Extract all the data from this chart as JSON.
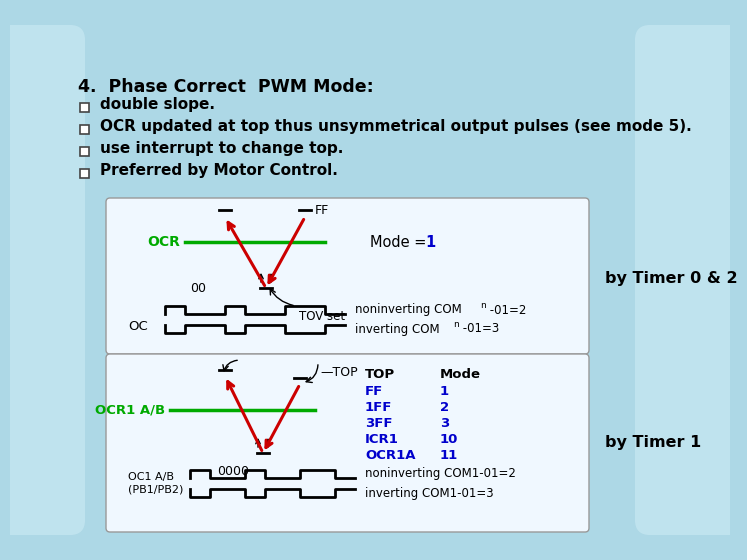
{
  "bg_color": "#add8e6",
  "box_bg": "#f0f8ff",
  "title_line": "4.  Phase Correct  PWM Mode:",
  "bullets": [
    "double slope.",
    "OCR updated at top thus unsymmetrical output pulses (see mode 5).",
    "use interrupt to change top.",
    "Preferred by Motor Control."
  ],
  "timer02_label": "by Timer 0 & 2",
  "timer1_label": "by Timer 1",
  "green_color": "#00aa00",
  "red_color": "#cc0000",
  "blue_color": "#0000cc",
  "black": "#000000",
  "white": "#ffffff",
  "gray_border": "#999999"
}
